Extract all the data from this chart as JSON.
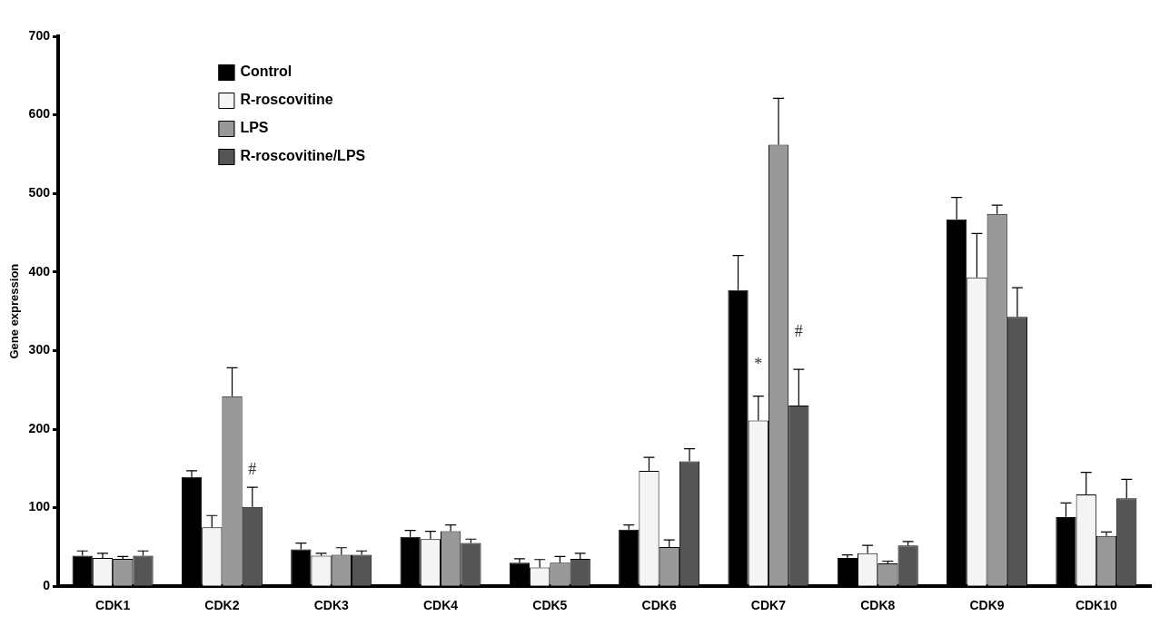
{
  "chart_data": {
    "type": "bar",
    "ylabel": "Gene expression",
    "categories": [
      "CDK1",
      "CDK2",
      "CDK3",
      "CDK4",
      "CDK5",
      "CDK6",
      "CDK7",
      "CDK8",
      "CDK9",
      "CDK10"
    ],
    "series": [
      {
        "name": "Control",
        "color": "#000000",
        "values": [
          39,
          139,
          47,
          63,
          30,
          72,
          377,
          36,
          467,
          88
        ],
        "errors": [
          [
            39,
            45
          ],
          [
            139,
            147
          ],
          [
            47,
            55
          ],
          [
            63,
            71
          ],
          [
            30,
            35
          ],
          [
            72,
            78
          ],
          [
            377,
            421
          ],
          [
            36,
            40
          ],
          [
            467,
            495
          ],
          [
            88,
            106
          ]
        ]
      },
      {
        "name": "R-roscovitine",
        "color": "#f4f4f4",
        "values": [
          36,
          75,
          39,
          60,
          24,
          147,
          211,
          42,
          393,
          117
        ],
        "errors": [
          [
            36,
            42
          ],
          [
            75,
            90
          ],
          [
            39,
            42
          ],
          [
            60,
            70
          ],
          [
            24,
            34
          ],
          [
            147,
            164
          ],
          [
            211,
            242
          ],
          [
            42,
            52
          ],
          [
            393,
            449
          ],
          [
            117,
            145
          ]
        ]
      },
      {
        "name": "LPS",
        "color": "#999999",
        "values": [
          35,
          242,
          40,
          70,
          30,
          50,
          562,
          29,
          474,
          64
        ],
        "errors": [
          [
            35,
            38
          ],
          [
            242,
            278
          ],
          [
            40,
            49
          ],
          [
            70,
            78
          ],
          [
            30,
            38
          ],
          [
            50,
            59
          ],
          [
            562,
            621
          ],
          [
            29,
            32
          ],
          [
            474,
            485
          ],
          [
            64,
            69
          ]
        ]
      },
      {
        "name": "R-roscovitine/LPS",
        "color": "#555555",
        "values": [
          39,
          101,
          40,
          55,
          35,
          159,
          230,
          52,
          343,
          112
        ],
        "errors": [
          [
            39,
            45
          ],
          [
            101,
            126
          ],
          [
            40,
            45
          ],
          [
            55,
            60
          ],
          [
            35,
            42
          ],
          [
            159,
            175
          ],
          [
            230,
            276
          ],
          [
            52,
            57
          ],
          [
            343,
            380
          ],
          [
            112,
            136
          ]
        ]
      }
    ],
    "annotations": [
      {
        "text": "#",
        "x": "CDK2",
        "y": 137
      },
      {
        "text": "*",
        "x": "CDK7",
        "y": 271
      },
      {
        "text": "#",
        "x": "CDK7",
        "y": 313
      }
    ],
    "ylim": [
      0,
      700
    ],
    "yticks": [
      0,
      100,
      200,
      300,
      400,
      500,
      600,
      700
    ],
    "grid": false,
    "legend": "top left"
  }
}
